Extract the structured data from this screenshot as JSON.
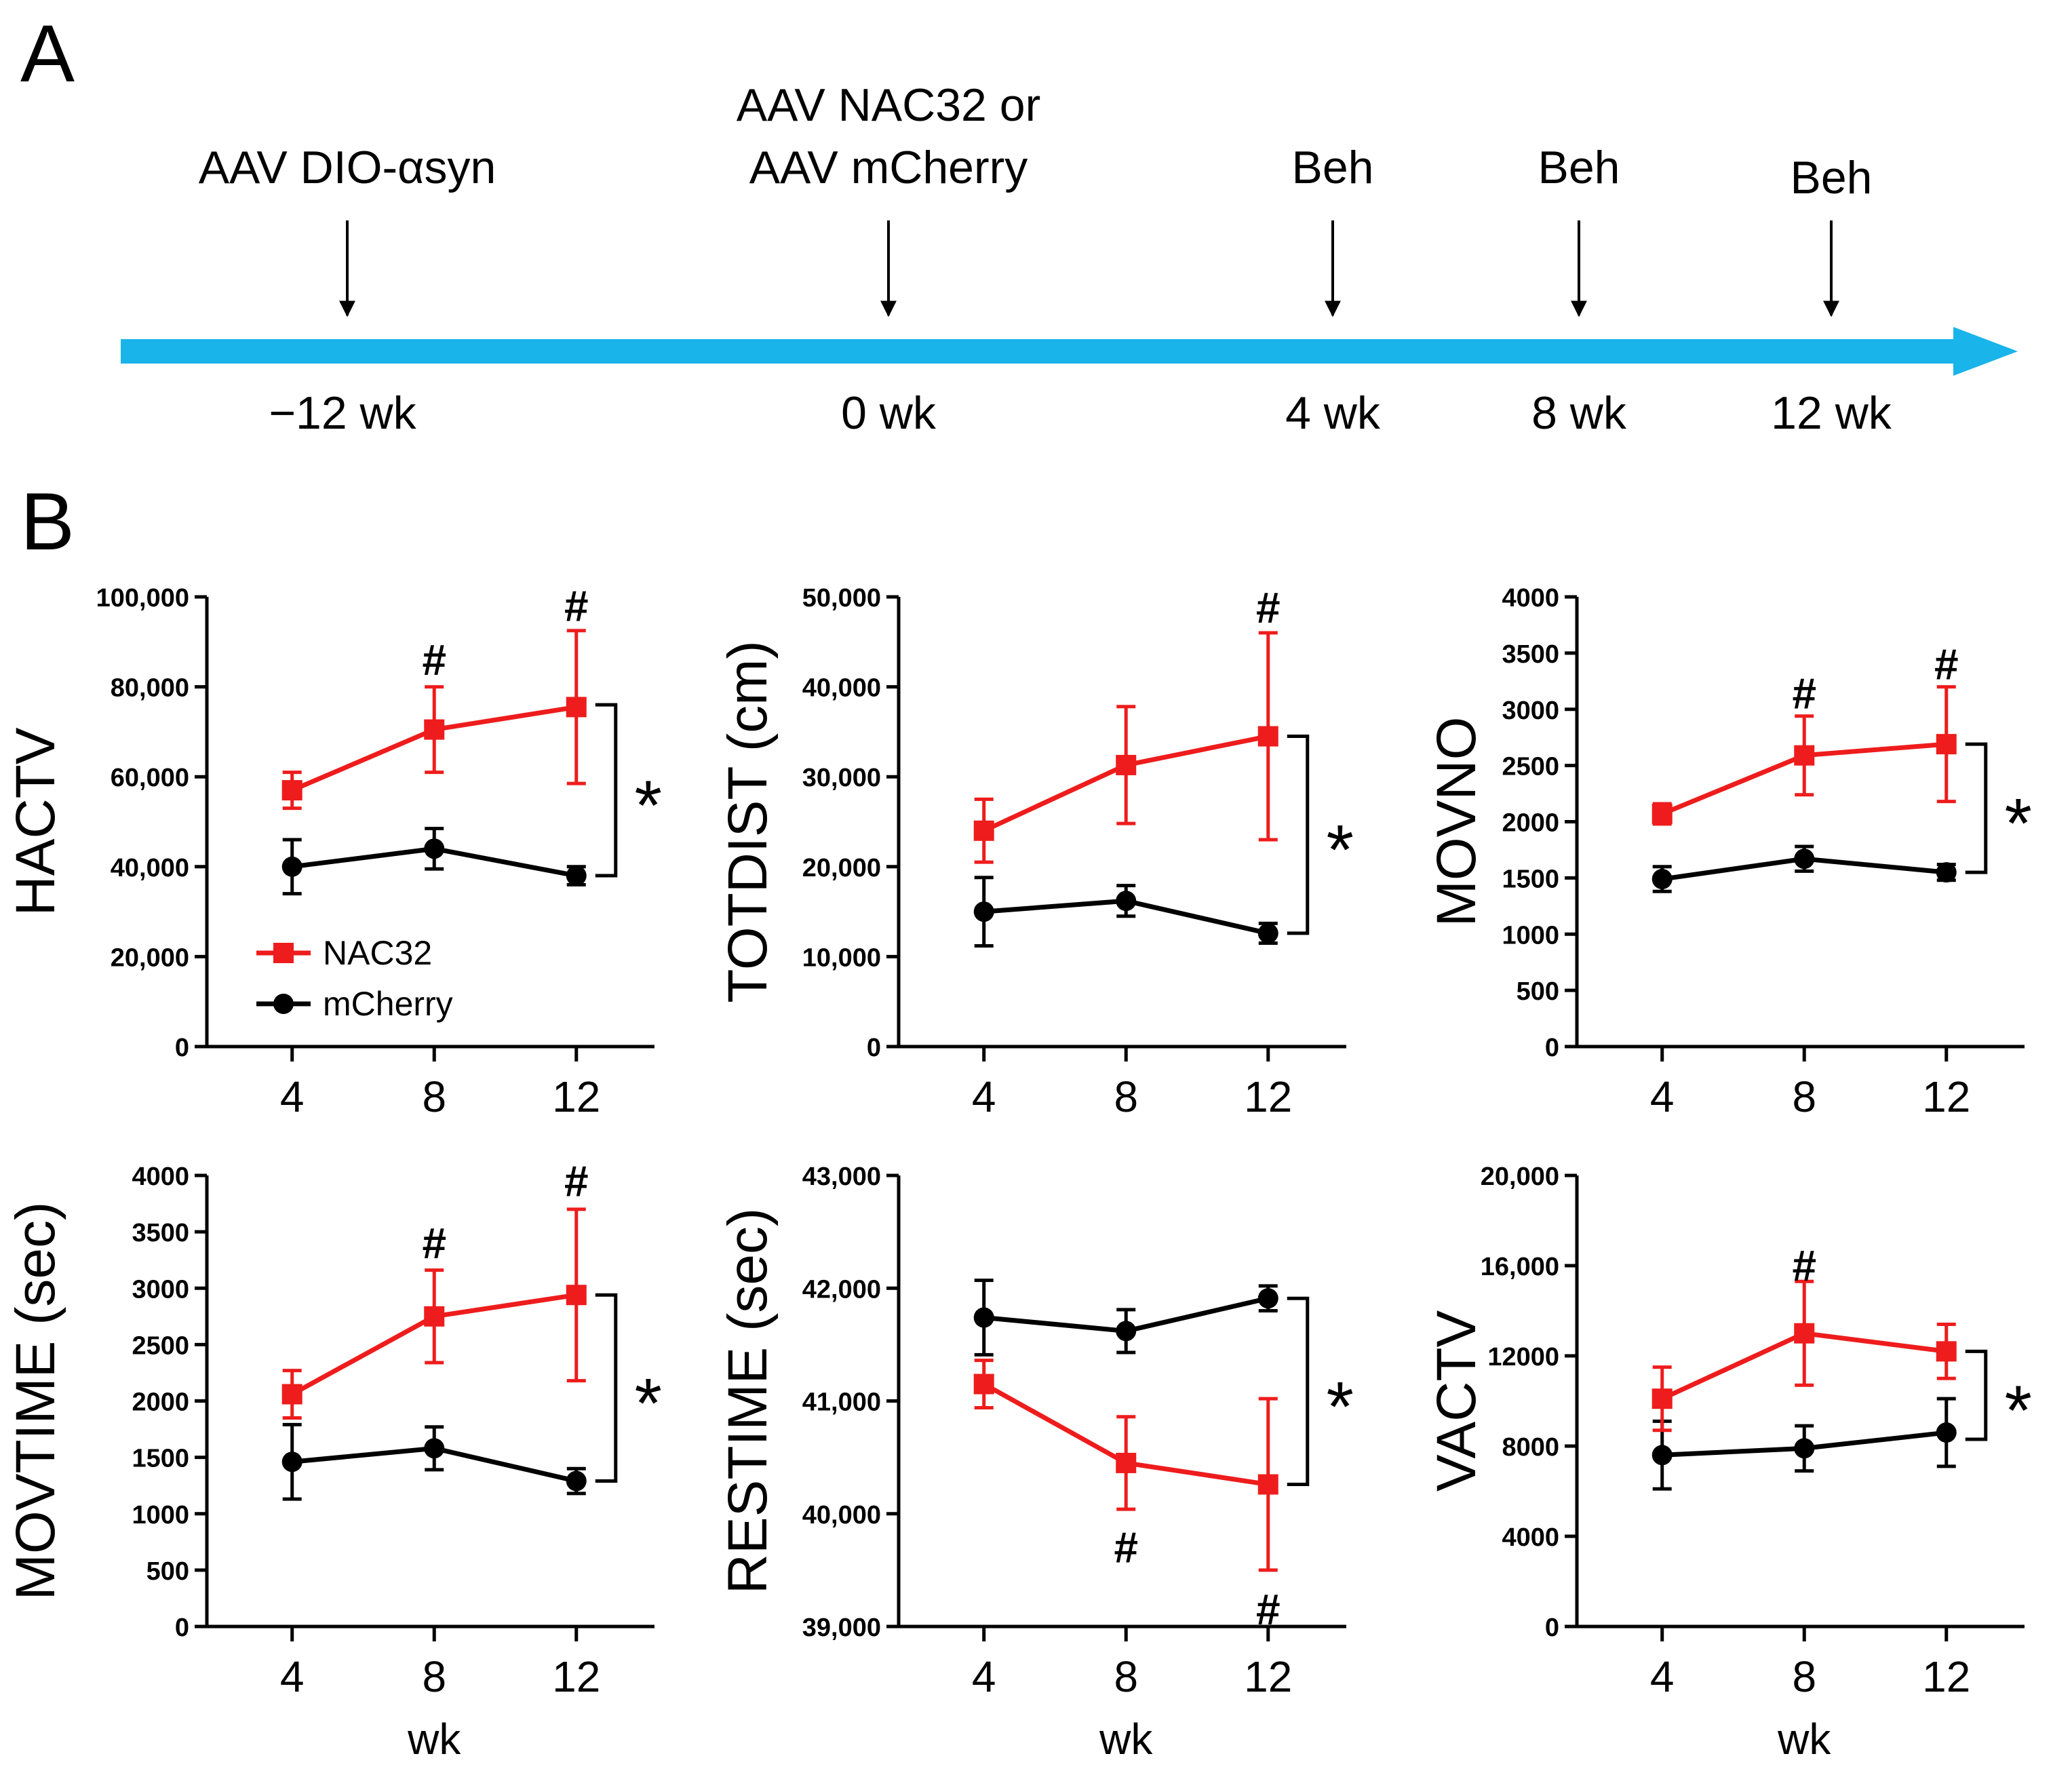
{
  "panels": {
    "a": "A",
    "b": "B"
  },
  "timeline": {
    "events": [
      {
        "label_lines": [
          "AAV DIO-αsyn"
        ],
        "week": "−12 wk"
      },
      {
        "label_lines": [
          "AAV NAC32 or",
          "AAV mCherry"
        ],
        "week": "0 wk"
      },
      {
        "label_lines": [
          "Beh"
        ],
        "week": "4 wk"
      },
      {
        "label_lines": [
          "Beh"
        ],
        "week": "8 wk"
      },
      {
        "label_lines": [
          "Beh"
        ],
        "week": "12 wk"
      }
    ],
    "arrow_color": "#19b4ea"
  },
  "colors": {
    "nac32": "#ee1c1c",
    "mcherry": "#000000"
  },
  "legend": {
    "nac32": "NAC32",
    "mcherry": "mCherry"
  },
  "chart_data": [
    {
      "type": "line",
      "ylabel": "HACTV",
      "xlabel": "",
      "x": [
        4,
        8,
        12
      ],
      "ylim": [
        0,
        100000
      ],
      "yticks": [
        0,
        20000,
        40000,
        60000,
        80000,
        100000
      ],
      "ytick_labels": [
        "0",
        "20,000",
        "40,000",
        "60,000",
        "80,000",
        "100,000"
      ],
      "xtick_labels": [
        "4",
        "8",
        "12"
      ],
      "series": [
        {
          "name": "NAC32",
          "values": [
            57000,
            70500,
            75500
          ],
          "errors": [
            4000,
            9500,
            17000
          ]
        },
        {
          "name": "mCherry",
          "values": [
            40000,
            44000,
            38000
          ],
          "errors": [
            6000,
            4500,
            2000
          ]
        }
      ],
      "hash_marks": [
        {
          "x": 8,
          "y": 86000
        },
        {
          "x": 12,
          "y": 98000
        }
      ],
      "significance": "*",
      "bracket": [
        76000,
        38000
      ]
    },
    {
      "type": "line",
      "ylabel": "TOTDIST (cm)",
      "xlabel": "",
      "x": [
        4,
        8,
        12
      ],
      "ylim": [
        0,
        50000
      ],
      "yticks": [
        0,
        10000,
        20000,
        30000,
        40000,
        50000
      ],
      "ytick_labels": [
        "0",
        "10,000",
        "20,000",
        "30,000",
        "40,000",
        "50,000"
      ],
      "xtick_labels": [
        "4",
        "8",
        "12"
      ],
      "series": [
        {
          "name": "NAC32",
          "values": [
            24000,
            31300,
            34500
          ],
          "errors": [
            3500,
            6500,
            11500
          ]
        },
        {
          "name": "mCherry",
          "values": [
            15000,
            16200,
            12600
          ],
          "errors": [
            3800,
            1700,
            1100
          ]
        }
      ],
      "hash_marks": [
        {
          "x": 12,
          "y": 48800
        }
      ],
      "significance": "*",
      "bracket": [
        34500,
        12600
      ]
    },
    {
      "type": "line",
      "ylabel": "MOVNO",
      "xlabel": "",
      "x": [
        4,
        8,
        12
      ],
      "ylim": [
        0,
        4000
      ],
      "yticks": [
        0,
        500,
        1000,
        1500,
        2000,
        2500,
        3000,
        3500,
        4000
      ],
      "ytick_labels": [
        "0",
        "500",
        "1000",
        "1500",
        "2000",
        "2500",
        "3000",
        "3500",
        "4000"
      ],
      "xtick_labels": [
        "4",
        "8",
        "12"
      ],
      "series": [
        {
          "name": "NAC32",
          "values": [
            2070,
            2590,
            2690
          ],
          "errors": [
            90,
            350,
            510
          ]
        },
        {
          "name": "mCherry",
          "values": [
            1490,
            1670,
            1550
          ],
          "errors": [
            110,
            110,
            70
          ]
        }
      ],
      "hash_marks": [
        {
          "x": 8,
          "y": 3140
        },
        {
          "x": 12,
          "y": 3400
        }
      ],
      "significance": "*",
      "bracket": [
        2690,
        1550
      ]
    },
    {
      "type": "line",
      "ylabel": "MOVTIME (sec)",
      "xlabel": "wk",
      "x": [
        4,
        8,
        12
      ],
      "ylim": [
        0,
        4000
      ],
      "yticks": [
        0,
        500,
        1000,
        1500,
        2000,
        2500,
        3000,
        3500,
        4000
      ],
      "ytick_labels": [
        "0",
        "500",
        "1000",
        "1500",
        "2000",
        "2500",
        "3000",
        "3500",
        "4000"
      ],
      "xtick_labels": [
        "4",
        "8",
        "12"
      ],
      "series": [
        {
          "name": "NAC32",
          "values": [
            2060,
            2750,
            2940
          ],
          "errors": [
            210,
            410,
            760
          ]
        },
        {
          "name": "mCherry",
          "values": [
            1460,
            1580,
            1290
          ],
          "errors": [
            330,
            190,
            110
          ]
        }
      ],
      "hash_marks": [
        {
          "x": 8,
          "y": 3400
        },
        {
          "x": 12,
          "y": 3950
        }
      ],
      "significance": "*",
      "bracket": [
        2940,
        1290
      ]
    },
    {
      "type": "line",
      "ylabel": "RESTIME (sec)",
      "xlabel": "wk",
      "x": [
        4,
        8,
        12
      ],
      "ylim": [
        39000,
        43000
      ],
      "yticks": [
        39000,
        40000,
        41000,
        42000,
        43000
      ],
      "ytick_labels": [
        "39,000",
        "40,000",
        "41,000",
        "42,000",
        "43,000"
      ],
      "xtick_labels": [
        "4",
        "8",
        "12"
      ],
      "series": [
        {
          "name": "NAC32",
          "values": [
            41150,
            40450,
            40260
          ],
          "errors": [
            210,
            410,
            760
          ]
        },
        {
          "name": "mCherry",
          "values": [
            41740,
            41620,
            41910
          ],
          "errors": [
            330,
            190,
            110
          ]
        }
      ],
      "hash_marks": [
        {
          "x": 8,
          "y": 39700
        },
        {
          "x": 12,
          "y": 39150
        }
      ],
      "significance": "*",
      "bracket": [
        41910,
        40260
      ]
    },
    {
      "type": "line",
      "ylabel": "VACTV",
      "xlabel": "wk",
      "x": [
        4,
        8,
        12
      ],
      "ylim": [
        0,
        20000
      ],
      "yticks": [
        0,
        4000,
        8000,
        12000,
        16000,
        20000
      ],
      "ytick_labels": [
        "0",
        "4000",
        "8000",
        "12000",
        "16,000",
        "20,000"
      ],
      "xtick_labels": [
        "4",
        "8",
        "12"
      ],
      "series": [
        {
          "name": "NAC32",
          "values": [
            10100,
            13000,
            12200
          ],
          "errors": [
            1400,
            2300,
            1200
          ]
        },
        {
          "name": "mCherry",
          "values": [
            7600,
            7900,
            8600
          ],
          "errors": [
            1500,
            1000,
            1500
          ]
        }
      ],
      "hash_marks": [
        {
          "x": 8,
          "y": 16000
        }
      ],
      "significance": "*",
      "bracket": [
        12200,
        8300
      ]
    }
  ]
}
